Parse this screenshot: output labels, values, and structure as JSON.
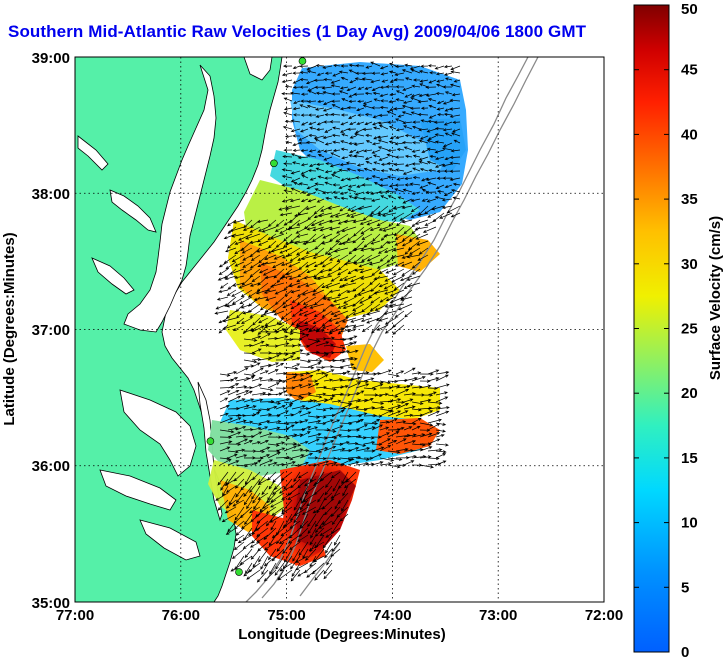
{
  "title": "Southern Mid-Atlantic Raw Velocities (1 Day Avg) 2009/04/06 1800 GMT",
  "map": {
    "xlabel": "Longitude (Degrees:Minutes)",
    "ylabel": "Latitude (Degrees:Minutes)",
    "x_ticks": [
      "77:00",
      "76:00",
      "75:00",
      "74:00",
      "73:00",
      "72:00"
    ],
    "y_ticks": [
      "39:00",
      "38:00",
      "37:00",
      "36:00",
      "35:00"
    ],
    "lon_range": [
      -77,
      -72
    ],
    "lat_range": [
      35,
      39
    ],
    "grid": "dotted",
    "land_color": "#55f0a8",
    "water_color": "#ffffff"
  },
  "colorbar": {
    "label": "Surface Velocity (cm/s)",
    "ticks": [
      "0",
      "5",
      "10",
      "15",
      "20",
      "25",
      "30",
      "35",
      "40",
      "45",
      "50"
    ],
    "range": [
      0,
      50
    ],
    "colormap": "jet"
  },
  "stations": [
    {
      "lon": -74.85,
      "lat": 38.97
    },
    {
      "lon": -75.12,
      "lat": 38.22
    },
    {
      "lon": -75.72,
      "lat": 36.18
    },
    {
      "lon": -75.45,
      "lat": 35.22
    }
  ]
}
